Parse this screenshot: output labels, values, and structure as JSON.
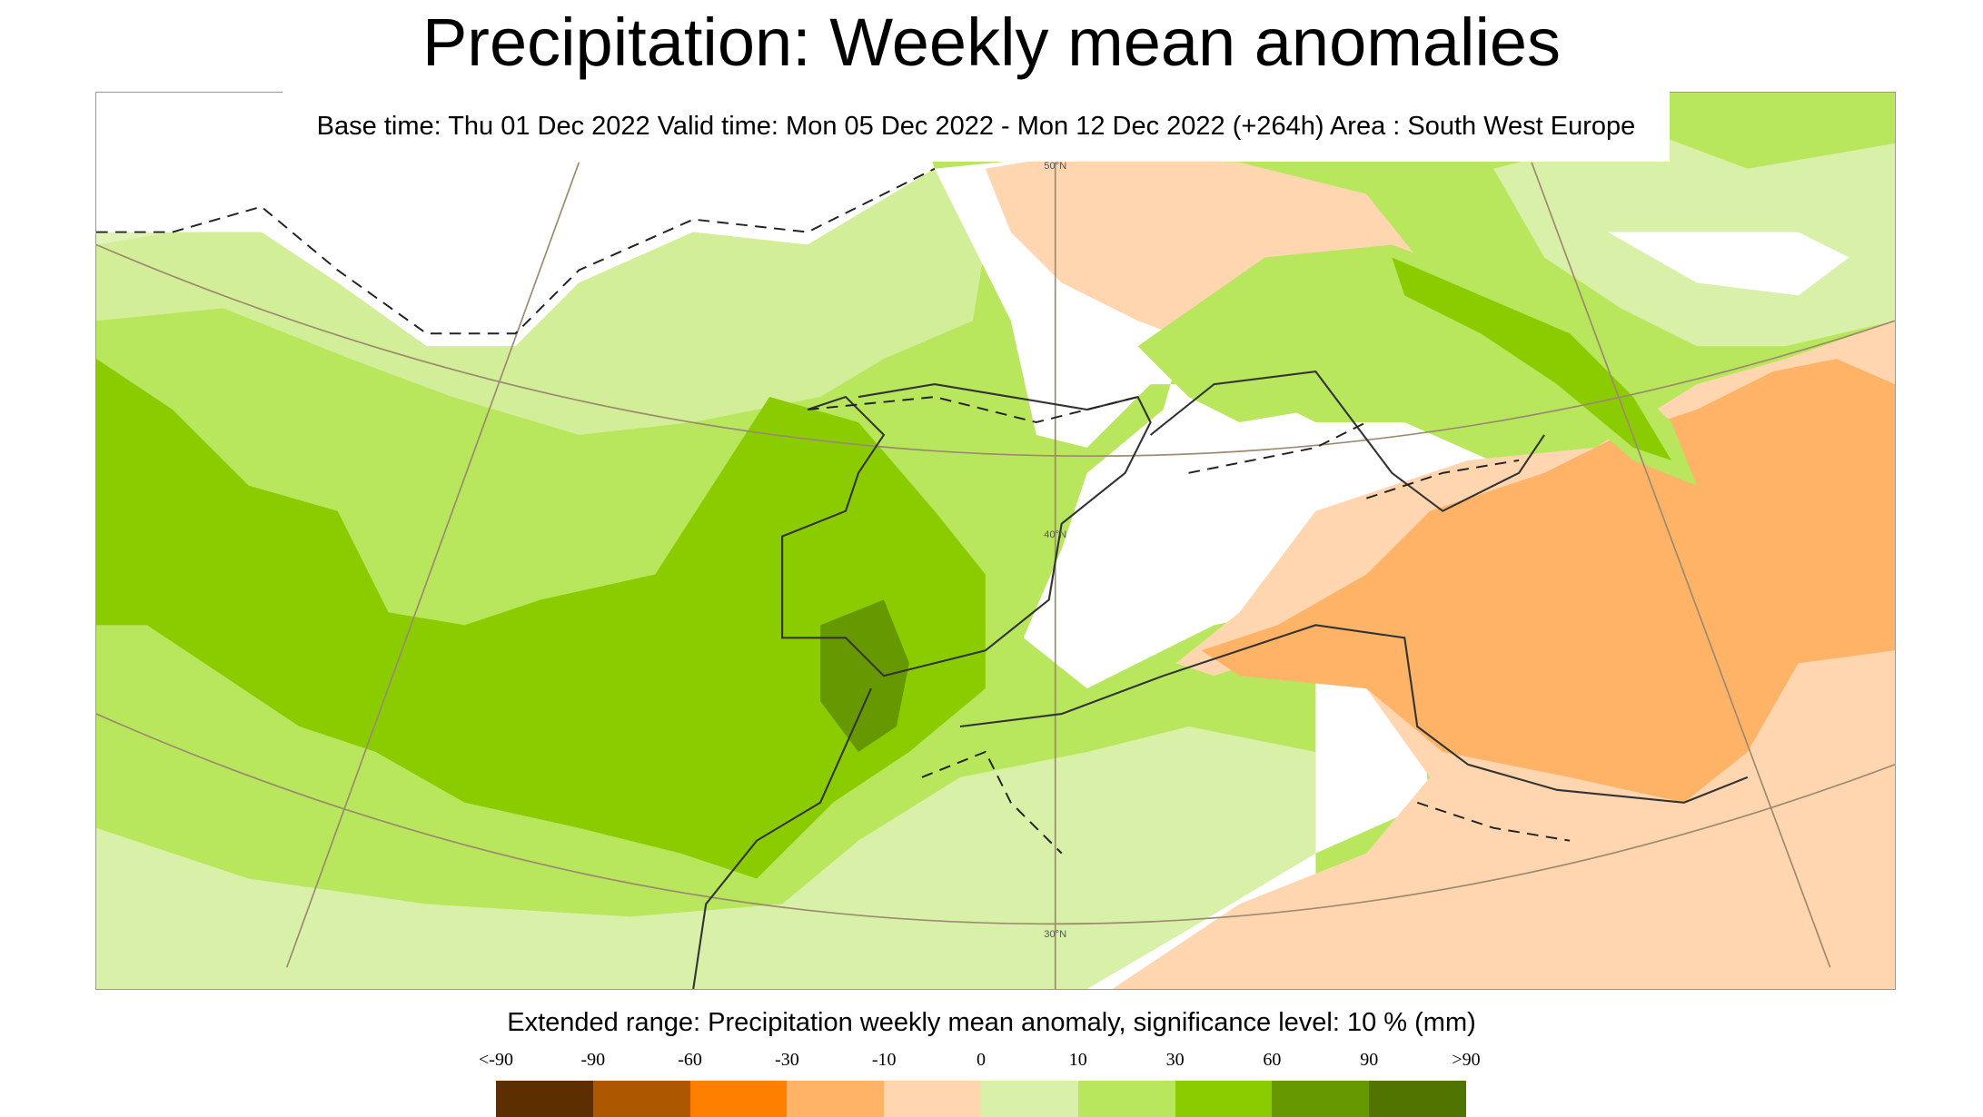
{
  "title": "Precipitation: Weekly mean anomalies",
  "subtitle": "Base time: Thu 01 Dec 2022 Valid time: Mon 05 Dec 2022 - Mon 12 Dec 2022 (+264h) Area : South West Europe",
  "map": {
    "graticule_labels": [
      "50°N",
      "40°N",
      "30°N"
    ]
  },
  "legend": {
    "title": "Extended range: Precipitation weekly mean anomaly, significance level: 10 % (mm)",
    "ticks": [
      "<-90",
      "-90",
      "-60",
      "-30",
      "-10",
      "0",
      "10",
      "30",
      "60",
      "90",
      ">90"
    ],
    "colors": [
      "#5c2e00",
      "#ad5700",
      "#ff8000",
      "#ffb366",
      "#ffd6b0",
      "#d9f0a8",
      "#b8e65c",
      "#8bcc00",
      "#669900",
      "#517300"
    ]
  }
}
